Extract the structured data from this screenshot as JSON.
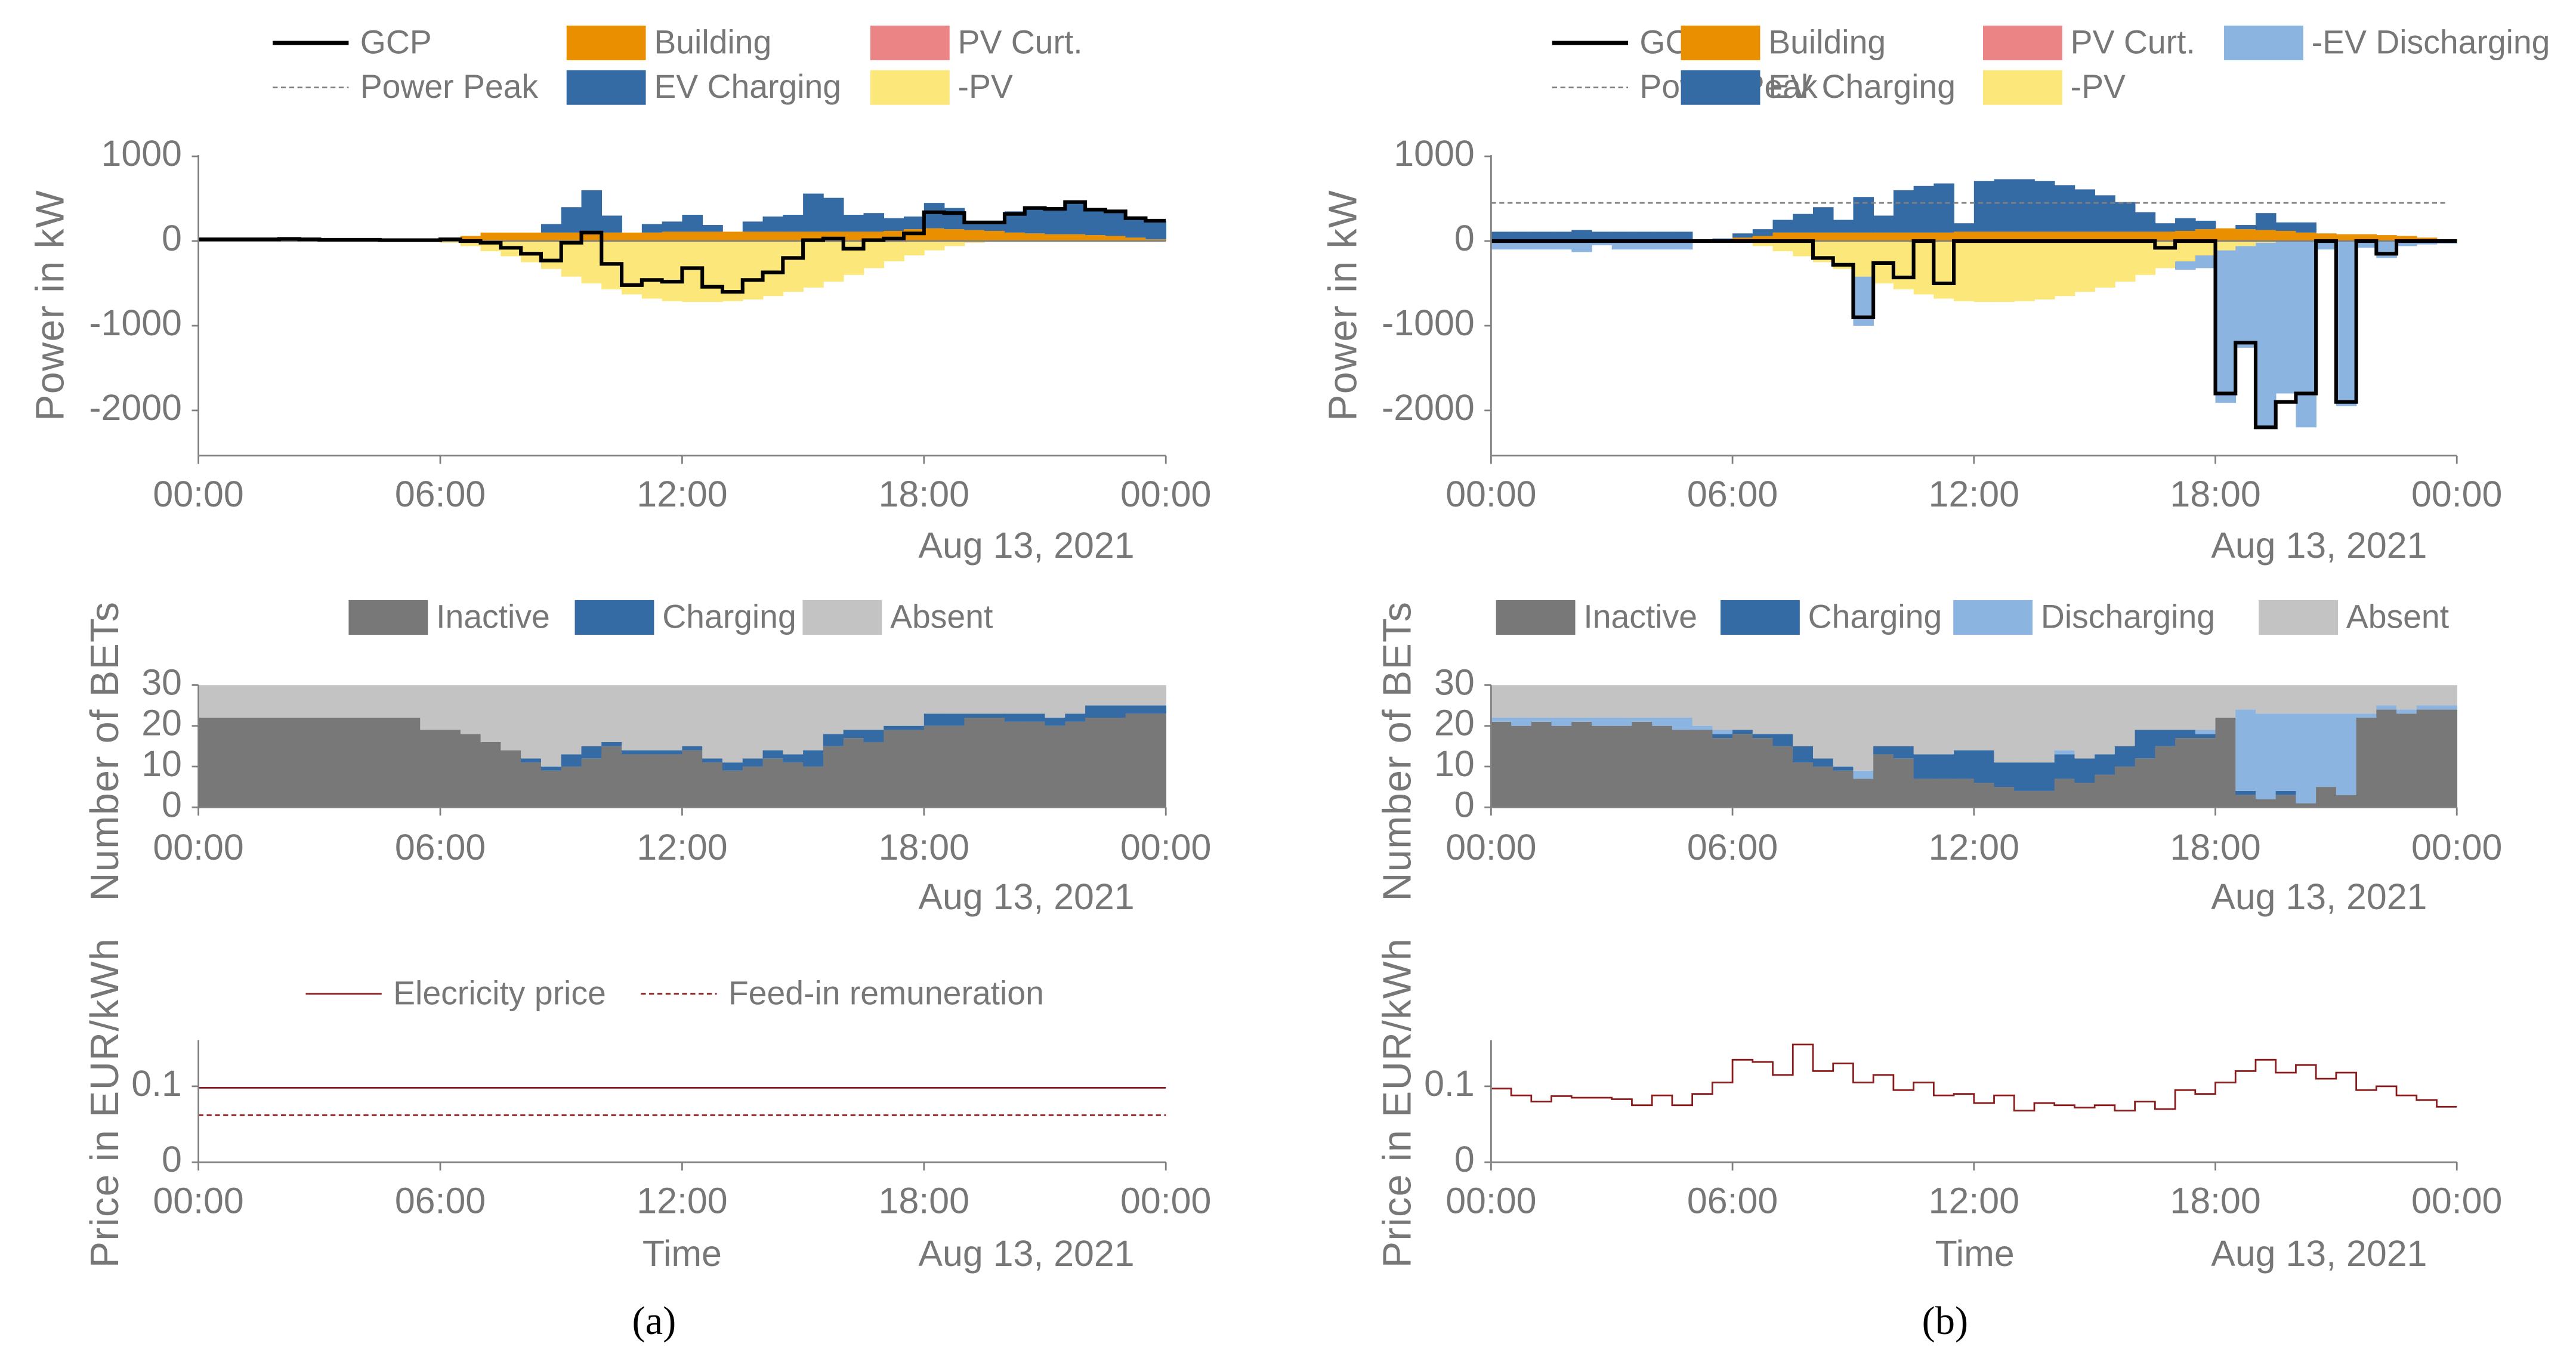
{
  "captions": {
    "a": "(a)",
    "b": "(b)"
  },
  "colors": {
    "gcp": "#000000",
    "building": "#EA9000",
    "ev_charging": "#356BA5",
    "pv_curt": "#EB8484",
    "pv": "#FBE77A",
    "ev_discharging": "#8CB4E0",
    "inactive": "#787878",
    "absent": "#C3C3C3",
    "price": "#8B1A1A",
    "axis": "#808080"
  },
  "chart_data": [
    {
      "id": "power_a",
      "panel": "a",
      "kind": "power",
      "type": "area",
      "title": "",
      "xlabel": "",
      "date_label": "Aug 13, 2021",
      "ylabel": "Power in kW",
      "ylim": [
        -2500,
        1000
      ],
      "grid": false,
      "legend_position": "top",
      "xtick_labels": [
        "00:00",
        "06:00",
        "12:00",
        "18:00",
        "00:00"
      ],
      "ytick_values": [
        1000,
        0,
        -1000,
        -2000
      ],
      "ytick_labels": [
        "1000",
        "0",
        "-1000",
        "-2000"
      ],
      "x_step_hours": 0.5,
      "legend": [
        {
          "name": "GCP",
          "style": "line",
          "color": "#000000"
        },
        {
          "name": "Power Peak",
          "style": "dashed",
          "color": "#808080"
        },
        {
          "name": "Building",
          "style": "box",
          "color": "#EA9000"
        },
        {
          "name": "EV Charging",
          "style": "box",
          "color": "#356BA5"
        },
        {
          "name": "PV Curt.",
          "style": "box",
          "color": "#EB8484"
        },
        {
          "name": "-PV",
          "style": "box",
          "color": "#FBE77A"
        }
      ],
      "building": [
        10,
        10,
        10,
        10,
        10,
        10,
        10,
        10,
        10,
        10,
        10,
        10,
        40,
        60,
        100,
        100,
        100,
        100,
        100,
        100,
        100,
        100,
        100,
        110,
        110,
        110,
        110,
        110,
        110,
        110,
        110,
        110,
        110,
        110,
        120,
        140,
        150,
        140,
        130,
        120,
        100,
        90,
        80,
        80,
        70,
        60,
        40,
        20
      ],
      "ev_charging": [
        0,
        0,
        0,
        0,
        0,
        0,
        0,
        0,
        0,
        0,
        0,
        0,
        0,
        0,
        0,
        0,
        0,
        100,
        300,
        500,
        200,
        0,
        100,
        120,
        200,
        80,
        0,
        120,
        180,
        200,
        450,
        400,
        200,
        220,
        150,
        150,
        300,
        250,
        100,
        100,
        250,
        300,
        300,
        380,
        300,
        280,
        230,
        220
      ],
      "pv": [
        0,
        0,
        0,
        0,
        0,
        0,
        0,
        0,
        0,
        0,
        0,
        0,
        -20,
        -60,
        -120,
        -180,
        -250,
        -330,
        -420,
        -500,
        -570,
        -630,
        -680,
        -710,
        -720,
        -720,
        -710,
        -690,
        -650,
        -600,
        -550,
        -480,
        -400,
        -320,
        -240,
        -170,
        -110,
        -60,
        -20,
        0,
        0,
        0,
        0,
        0,
        0,
        0,
        0,
        0
      ],
      "ev_discharging": null,
      "gcp": [
        20,
        20,
        20,
        20,
        25,
        20,
        15,
        15,
        15,
        10,
        10,
        10,
        20,
        0,
        -20,
        -80,
        -150,
        -230,
        -20,
        100,
        -270,
        -520,
        -460,
        -480,
        -320,
        -540,
        -600,
        -460,
        -370,
        -200,
        10,
        30,
        -90,
        10,
        30,
        90,
        340,
        330,
        220,
        220,
        320,
        390,
        380,
        460,
        370,
        350,
        270,
        240
      ],
      "power_peak": null
    },
    {
      "id": "power_b",
      "panel": "b",
      "kind": "power",
      "type": "area",
      "title": "",
      "xlabel": "",
      "date_label": "Aug 13, 2021",
      "ylabel": "Power in kW",
      "ylim": [
        -2500,
        1000
      ],
      "grid": false,
      "legend_position": "top",
      "xtick_labels": [
        "00:00",
        "06:00",
        "12:00",
        "18:00",
        "00:00"
      ],
      "ytick_values": [
        1000,
        0,
        -1000,
        -2000
      ],
      "ytick_labels": [
        "1000",
        "0",
        "-1000",
        "-2000"
      ],
      "x_step_hours": 0.5,
      "legend": [
        {
          "name": "GCP",
          "style": "line",
          "color": "#000000"
        },
        {
          "name": "Power Peak",
          "style": "dashed",
          "color": "#808080"
        },
        {
          "name": "Building",
          "style": "box",
          "color": "#EA9000"
        },
        {
          "name": "EV Charging",
          "style": "box",
          "color": "#356BA5"
        },
        {
          "name": "PV Curt.",
          "style": "box",
          "color": "#EB8484"
        },
        {
          "name": "-PV",
          "style": "box",
          "color": "#FBE77A"
        },
        {
          "name": "-EV Discharging",
          "style": "box",
          "color": "#8CB4E0"
        }
      ],
      "building": [
        10,
        10,
        10,
        10,
        10,
        10,
        10,
        10,
        10,
        10,
        10,
        10,
        40,
        60,
        100,
        100,
        100,
        100,
        100,
        100,
        100,
        100,
        100,
        110,
        110,
        110,
        110,
        110,
        110,
        110,
        110,
        110,
        110,
        110,
        120,
        140,
        150,
        140,
        130,
        120,
        100,
        90,
        80,
        80,
        70,
        60,
        40,
        20
      ],
      "ev_charging": [
        100,
        100,
        100,
        100,
        120,
        100,
        100,
        100,
        100,
        100,
        0,
        20,
        50,
        80,
        150,
        220,
        300,
        150,
        420,
        200,
        500,
        550,
        580,
        100,
        600,
        620,
        620,
        600,
        550,
        500,
        430,
        350,
        230,
        100,
        150,
        100,
        0,
        50,
        200,
        100,
        120,
        0,
        0,
        0,
        0,
        0,
        0,
        0
      ],
      "pv": [
        0,
        0,
        0,
        0,
        0,
        0,
        0,
        0,
        0,
        0,
        0,
        0,
        -20,
        -60,
        -120,
        -180,
        -250,
        -330,
        -420,
        -500,
        -570,
        -630,
        -680,
        -710,
        -720,
        -720,
        -710,
        -690,
        -650,
        -600,
        -550,
        -480,
        -400,
        -320,
        -240,
        -170,
        -110,
        -60,
        -20,
        0,
        0,
        0,
        0,
        0,
        0,
        0,
        0,
        0
      ],
      "ev_discharging": [
        -100,
        -100,
        -100,
        -100,
        -130,
        -50,
        -100,
        -100,
        -100,
        -100,
        0,
        -20,
        0,
        0,
        0,
        0,
        0,
        0,
        -580,
        0,
        0,
        0,
        0,
        0,
        0,
        0,
        0,
        0,
        0,
        0,
        0,
        0,
        0,
        0,
        -100,
        -150,
        -1800,
        -1200,
        -2200,
        -1800,
        -2200,
        -100,
        -1950,
        -80,
        -200,
        -60,
        -40,
        -30
      ],
      "gcp": [
        0,
        0,
        0,
        0,
        0,
        0,
        0,
        0,
        0,
        0,
        0,
        0,
        0,
        0,
        0,
        0,
        -200,
        -280,
        -900,
        -260,
        -430,
        0,
        -500,
        0,
        0,
        0,
        0,
        0,
        0,
        0,
        0,
        0,
        0,
        -80,
        0,
        0,
        -1800,
        -1200,
        -2200,
        -1900,
        -1800,
        0,
        -1900,
        0,
        -150,
        0,
        0,
        0
      ],
      "power_peak": 450
    },
    {
      "id": "bets_a",
      "panel": "a",
      "kind": "bets",
      "type": "area",
      "title": "",
      "xlabel": "",
      "date_label": "Aug 13, 2021",
      "ylabel": "Number of BETs",
      "ylim": [
        0,
        30
      ],
      "total": 30,
      "grid": false,
      "legend_position": "top",
      "xtick_labels": [
        "00:00",
        "06:00",
        "12:00",
        "18:00",
        "00:00"
      ],
      "ytick_values": [
        30,
        20,
        10,
        0
      ],
      "ytick_labels": [
        "30",
        "20",
        "10",
        "0"
      ],
      "x_step_hours": 0.5,
      "legend": [
        {
          "name": "Inactive",
          "color": "#787878"
        },
        {
          "name": "Charging",
          "color": "#356BA5"
        },
        {
          "name": "Absent",
          "color": "#C3C3C3"
        }
      ],
      "inactive": [
        22,
        22,
        22,
        22,
        22,
        22,
        22,
        22,
        22,
        22,
        22,
        19,
        19,
        18,
        16,
        14,
        11,
        9,
        10,
        12,
        15,
        13,
        13,
        13,
        14,
        11,
        9,
        10,
        12,
        11,
        10,
        15,
        17,
        16,
        19,
        19,
        20,
        20,
        22,
        22,
        21,
        21,
        20,
        21,
        22,
        22,
        23,
        23
      ],
      "charging": [
        0,
        0,
        0,
        0,
        0,
        0,
        0,
        0,
        0,
        0,
        0,
        0,
        0,
        0,
        0,
        0,
        1,
        1,
        3,
        3,
        1,
        1,
        1,
        1,
        1,
        1,
        2,
        2,
        2,
        2,
        4,
        3,
        2,
        3,
        1,
        1,
        3,
        3,
        1,
        1,
        2,
        2,
        2,
        2,
        3,
        3,
        2,
        2
      ],
      "discharging": null
    },
    {
      "id": "bets_b",
      "panel": "b",
      "kind": "bets",
      "type": "area",
      "title": "",
      "xlabel": "",
      "date_label": "Aug 13, 2021",
      "ylabel": "Number of BETs",
      "ylim": [
        0,
        30
      ],
      "total": 30,
      "grid": false,
      "legend_position": "top",
      "xtick_labels": [
        "00:00",
        "06:00",
        "12:00",
        "18:00",
        "00:00"
      ],
      "ytick_values": [
        30,
        20,
        10,
        0
      ],
      "ytick_labels": [
        "30",
        "20",
        "10",
        "0"
      ],
      "x_step_hours": 0.5,
      "legend": [
        {
          "name": "Inactive",
          "color": "#787878"
        },
        {
          "name": "Charging",
          "color": "#356BA5"
        },
        {
          "name": "Discharging",
          "color": "#8CB4E0"
        },
        {
          "name": "Absent",
          "color": "#C3C3C3"
        }
      ],
      "inactive": [
        21,
        20,
        21,
        20,
        21,
        20,
        20,
        21,
        20,
        19,
        19,
        17,
        18,
        17,
        15,
        11,
        10,
        9,
        7,
        13,
        12,
        7,
        7,
        7,
        6,
        5,
        4,
        4,
        7,
        6,
        8,
        10,
        12,
        15,
        17,
        17,
        22,
        3,
        2,
        3,
        1,
        5,
        3,
        22,
        24,
        23,
        24,
        24
      ],
      "charging": [
        0,
        0,
        0,
        0,
        0,
        0,
        0,
        0,
        0,
        0,
        0,
        1,
        1,
        1,
        3,
        4,
        2,
        1,
        0,
        2,
        3,
        6,
        6,
        7,
        8,
        6,
        7,
        7,
        6,
        6,
        5,
        5,
        7,
        4,
        2,
        1,
        0,
        1,
        0,
        1,
        0,
        0,
        0,
        0,
        0,
        0,
        0,
        0
      ],
      "discharging": [
        1,
        2,
        1,
        2,
        1,
        2,
        2,
        1,
        2,
        3,
        1,
        1,
        0,
        0,
        0,
        0,
        0,
        0,
        2,
        0,
        0,
        0,
        0,
        0,
        0,
        0,
        0,
        0,
        1,
        0,
        0,
        0,
        0,
        0,
        0,
        1,
        0,
        20,
        21,
        19,
        22,
        18,
        20,
        1,
        1,
        1,
        1,
        1
      ]
    },
    {
      "id": "price_a",
      "panel": "a",
      "kind": "price",
      "type": "line",
      "title": "",
      "xlabel": "Time",
      "date_label": "Aug 13, 2021",
      "ylabel": "Price in EUR/kWh",
      "ylim": [
        0,
        0.16
      ],
      "grid": false,
      "legend_position": "top",
      "xtick_labels": [
        "00:00",
        "06:00",
        "12:00",
        "18:00",
        "00:00"
      ],
      "ytick_values": [
        0.1,
        0
      ],
      "ytick_labels": [
        "0.1",
        "0"
      ],
      "x_step_hours": 0.5,
      "legend": [
        {
          "name": "Elecricity price",
          "style": "line",
          "color": "#8B1A1A"
        },
        {
          "name": "Feed-in remuneration",
          "style": "dashed",
          "color": "#8B1A1A"
        }
      ],
      "electricity_price": [
        0.098,
        0.098,
        0.098,
        0.098,
        0.098,
        0.098,
        0.098,
        0.098,
        0.098,
        0.098,
        0.098,
        0.098,
        0.098,
        0.098,
        0.098,
        0.098,
        0.098,
        0.098,
        0.098,
        0.098,
        0.098,
        0.098,
        0.098,
        0.098,
        0.098,
        0.098,
        0.098,
        0.098,
        0.098,
        0.098,
        0.098,
        0.098,
        0.098,
        0.098,
        0.098,
        0.098,
        0.098,
        0.098,
        0.098,
        0.098,
        0.098,
        0.098,
        0.098,
        0.098,
        0.098,
        0.098,
        0.098,
        0.098
      ],
      "feed_in_remuneration": [
        0.062,
        0.062,
        0.062,
        0.062,
        0.062,
        0.062,
        0.062,
        0.062,
        0.062,
        0.062,
        0.062,
        0.062,
        0.062,
        0.062,
        0.062,
        0.062,
        0.062,
        0.062,
        0.062,
        0.062,
        0.062,
        0.062,
        0.062,
        0.062,
        0.062,
        0.062,
        0.062,
        0.062,
        0.062,
        0.062,
        0.062,
        0.062,
        0.062,
        0.062,
        0.062,
        0.062,
        0.062,
        0.062,
        0.062,
        0.062,
        0.062,
        0.062,
        0.062,
        0.062,
        0.062,
        0.062,
        0.062,
        0.062
      ]
    },
    {
      "id": "price_b",
      "panel": "b",
      "kind": "price",
      "type": "line",
      "title": "",
      "xlabel": "Time",
      "date_label": "Aug 13, 2021",
      "ylabel": "Price in EUR/kWh",
      "ylim": [
        0,
        0.16
      ],
      "grid": false,
      "legend_position": "none",
      "xtick_labels": [
        "00:00",
        "06:00",
        "12:00",
        "18:00",
        "00:00"
      ],
      "ytick_values": [
        0.1,
        0
      ],
      "ytick_labels": [
        "0.1",
        "0"
      ],
      "x_step_hours": 0.5,
      "legend": [],
      "electricity_price": [
        0.097,
        0.088,
        0.08,
        0.087,
        0.085,
        0.085,
        0.083,
        0.075,
        0.088,
        0.075,
        0.09,
        0.105,
        0.135,
        0.132,
        0.115,
        0.155,
        0.12,
        0.13,
        0.105,
        0.115,
        0.095,
        0.105,
        0.088,
        0.09,
        0.078,
        0.088,
        0.068,
        0.078,
        0.075,
        0.072,
        0.075,
        0.068,
        0.08,
        0.07,
        0.095,
        0.09,
        0.105,
        0.12,
        0.135,
        0.118,
        0.128,
        0.11,
        0.118,
        0.095,
        0.1,
        0.088,
        0.082,
        0.073
      ],
      "feed_in_remuneration": null
    }
  ]
}
